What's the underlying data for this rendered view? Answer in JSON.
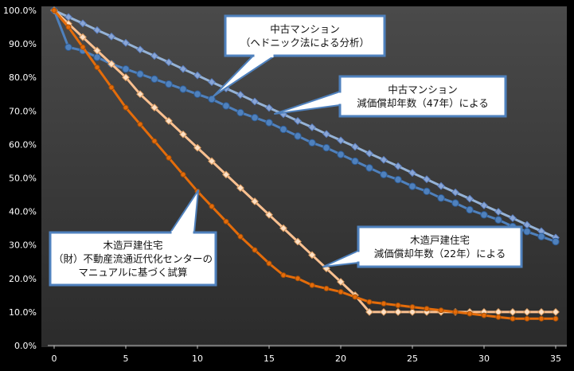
{
  "chart_data": {
    "type": "line",
    "xlim": [
      0,
      35
    ],
    "ylim": [
      0,
      100
    ],
    "x_ticks": [
      0,
      5,
      10,
      15,
      20,
      25,
      30,
      35
    ],
    "y_ticks": [
      "0.0%",
      "10.0%",
      "20.0%",
      "30.0%",
      "40.0%",
      "50.0%",
      "60.0%",
      "70.0%",
      "80.0%",
      "90.0%",
      "100.0%"
    ],
    "grid": false,
    "series": [
      {
        "style": "used-condo-hedonic",
        "color": "#4f81bd",
        "x": [
          0,
          1,
          2,
          3,
          4,
          5,
          6,
          7,
          8,
          9,
          10,
          11,
          12,
          13,
          14,
          15,
          16,
          17,
          18,
          19,
          20,
          21,
          22,
          23,
          24,
          25,
          26,
          27,
          28,
          29,
          30,
          31,
          32,
          33,
          34,
          35
        ],
        "values": [
          100,
          89,
          88,
          86,
          84,
          82.5,
          81,
          79.5,
          78,
          76.5,
          75,
          73.5,
          71.5,
          69.5,
          68,
          66.5,
          64.5,
          62.5,
          60.5,
          59,
          57,
          55,
          53,
          51,
          49.5,
          47.5,
          46,
          44,
          42.5,
          40.5,
          39,
          37.5,
          35.5,
          34,
          32.5,
          31
        ]
      },
      {
        "style": "used-condo-47yr",
        "color": "#95b3d7",
        "x": [
          0,
          1,
          2,
          3,
          4,
          5,
          6,
          7,
          8,
          9,
          10,
          11,
          12,
          13,
          14,
          15,
          16,
          17,
          18,
          19,
          20,
          21,
          22,
          23,
          24,
          25,
          26,
          27,
          28,
          29,
          30,
          31,
          32,
          33,
          34,
          35
        ],
        "values": [
          100,
          98,
          96.1,
          94.1,
          92.2,
          90.3,
          88.3,
          86.4,
          84.5,
          82.5,
          80.6,
          78.6,
          76.7,
          74.8,
          72.8,
          70.9,
          69,
          67,
          65.1,
          63.1,
          61.2,
          59.3,
          57.3,
          55.4,
          53.5,
          51.5,
          49.6,
          47.6,
          45.7,
          43.8,
          41.8,
          39.9,
          38,
          36,
          34.1,
          32.2
        ]
      },
      {
        "style": "wooden-house-manual",
        "color": "#e46c0a",
        "x": [
          0,
          1,
          2,
          3,
          4,
          5,
          6,
          7,
          8,
          9,
          10,
          11,
          12,
          13,
          14,
          15,
          16,
          17,
          18,
          19,
          20,
          21,
          22,
          23,
          24,
          25,
          26,
          27,
          28,
          29,
          30,
          31,
          32,
          33,
          34,
          35
        ],
        "values": [
          100,
          95,
          89,
          83,
          77,
          71,
          66,
          61,
          56,
          51,
          46,
          41.5,
          37,
          32.5,
          28.5,
          24.5,
          21,
          20,
          18,
          17,
          16,
          14.5,
          13,
          12.5,
          12,
          11.5,
          11,
          10.5,
          10,
          9.5,
          9,
          8.5,
          8,
          8,
          8,
          8
        ]
      },
      {
        "style": "wooden-house-22yr",
        "color": "#fac090",
        "x": [
          0,
          1,
          2,
          3,
          4,
          5,
          6,
          7,
          8,
          9,
          10,
          11,
          12,
          13,
          14,
          15,
          16,
          17,
          18,
          19,
          20,
          21,
          22,
          23,
          24,
          25,
          26,
          27,
          28,
          29,
          30,
          31,
          32,
          33,
          34,
          35
        ],
        "values": [
          100,
          96,
          92,
          88,
          84,
          80,
          75,
          71,
          67,
          63,
          59,
          55,
          51,
          47,
          43,
          39,
          35,
          31,
          27,
          23,
          19,
          15,
          10,
          10,
          10,
          10,
          10,
          10,
          10,
          10,
          10,
          10,
          10,
          10,
          10,
          10
        ]
      }
    ],
    "annotations": [
      {
        "lines": [
          "中古マンション",
          "（ヘドニック法による分析）"
        ]
      },
      {
        "lines": [
          "中古マンション",
          "減価償却年数（47年）による"
        ]
      },
      {
        "lines": [
          "木造戸建住宅",
          "（財）不動産流通近代化センターの",
          "マニュアルに基づく試算"
        ]
      },
      {
        "lines": [
          "木造戸建住宅",
          "減価償却年数（22年）による"
        ]
      }
    ]
  }
}
